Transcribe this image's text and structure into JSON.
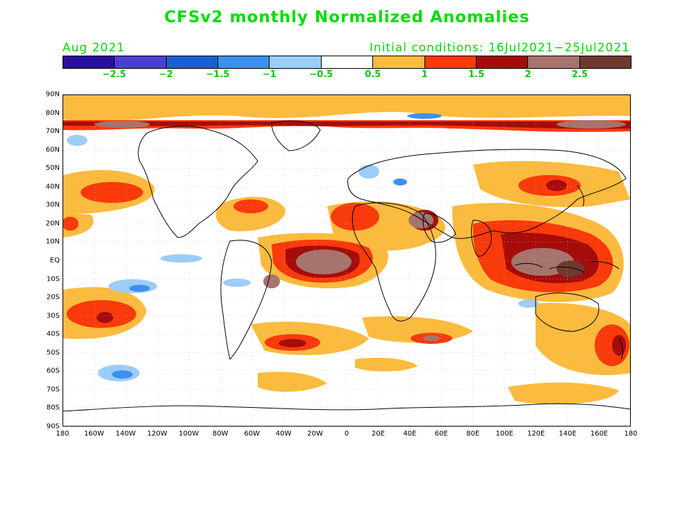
{
  "title": "CFSv2 monthly Normalized Anomalies",
  "valid_month": "Aug 2021",
  "initial_conditions": "Initial conditions: 16Jul2021−25Jul2021",
  "colorbar": {
    "colors": [
      "#2a0fa0",
      "#4a3fcf",
      "#1b5fd0",
      "#3d8fef",
      "#9ccdf6",
      "#ffffff",
      "#fbbb3e",
      "#f93a0a",
      "#a60c0a",
      "#a6746d",
      "#6d3a30"
    ],
    "labels": [
      "−2.5",
      "−2",
      "−1.5",
      "−1",
      "−0.5",
      "0.5",
      "1",
      "1.5",
      "2",
      "2.5"
    ]
  },
  "lat_labels": [
    "90N",
    "80N",
    "70N",
    "60N",
    "50N",
    "40N",
    "30N",
    "20N",
    "10N",
    "EQ",
    "10S",
    "20S",
    "30S",
    "40S",
    "50S",
    "60S",
    "70S",
    "80S",
    "90S"
  ],
  "lon_labels": [
    "180",
    "160W",
    "140W",
    "120W",
    "100W",
    "80W",
    "60W",
    "40W",
    "20W",
    "0",
    "20E",
    "40E",
    "60E",
    "80E",
    "100E",
    "120E",
    "140E",
    "160E",
    "180"
  ]
}
